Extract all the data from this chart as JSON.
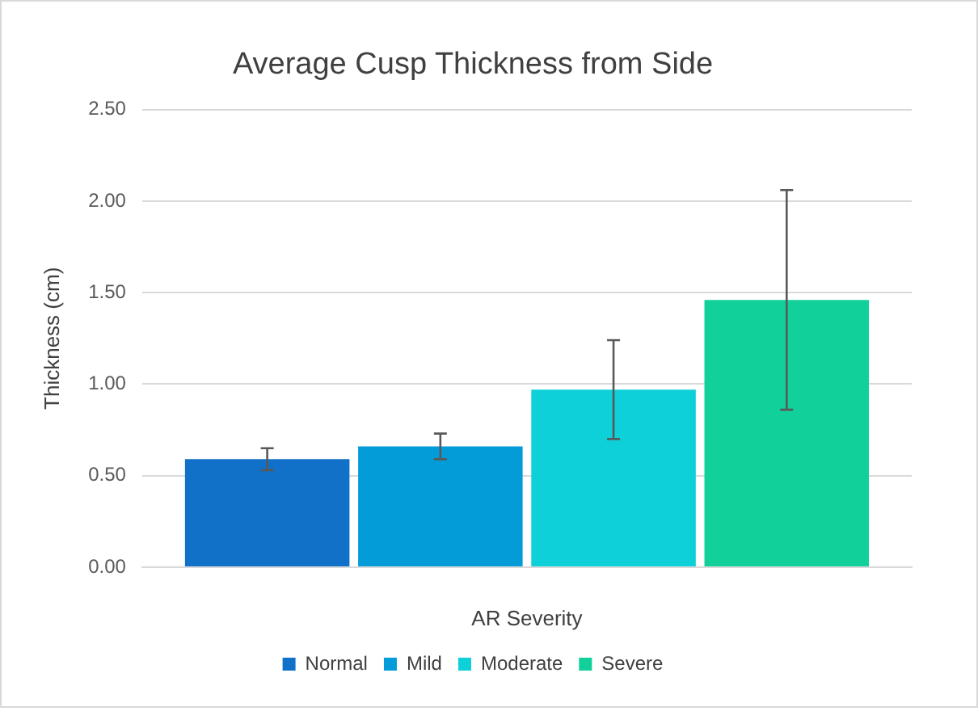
{
  "chart_data": {
    "type": "bar",
    "title": "Average Cusp Thickness from Side",
    "xlabel": "AR Severity",
    "ylabel": "Thickness (cm)",
    "categories": [
      null
    ],
    "series": [
      {
        "name": "Normal",
        "color": "#1170c8",
        "values": [
          0.59
        ],
        "errors": [
          0.06
        ]
      },
      {
        "name": "Mild",
        "color": "#049cd8",
        "values": [
          0.66
        ],
        "errors": [
          0.07
        ]
      },
      {
        "name": "Moderate",
        "color": "#0ed0d8",
        "values": [
          0.97
        ],
        "errors": [
          0.27
        ]
      },
      {
        "name": "Severe",
        "color": "#12d09a",
        "values": [
          1.46
        ],
        "errors": [
          0.6
        ]
      }
    ],
    "ylim": [
      0,
      2.5
    ],
    "yticks": [
      {
        "value": 0,
        "label": "0.00"
      },
      {
        "value": 0.5,
        "label": "0.50"
      },
      {
        "value": 1,
        "label": "1.00"
      },
      {
        "value": 1.5,
        "label": "1.50"
      },
      {
        "value": 2,
        "label": "2.00"
      },
      {
        "value": 2.5,
        "label": "2.50"
      }
    ],
    "grid": "y",
    "legend": "bottom"
  }
}
